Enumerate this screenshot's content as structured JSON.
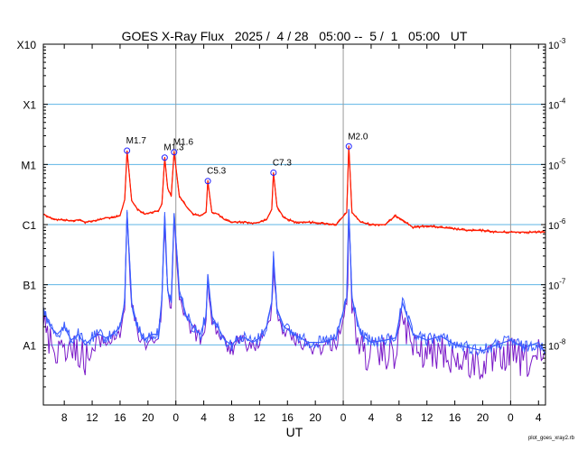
{
  "colors": {
    "grid": "#5fb4e6",
    "day_line": "#9a9a9a",
    "long_channel": "#ff1a00",
    "long_channel_alt": "#f5a000",
    "short_channel": "#3a5cff",
    "short_channel_alt": "#7a18c8",
    "flare_marker": "#2222ff"
  },
  "chart_data": {
    "type": "line",
    "title": "GOES X-Ray Flux   2025 /  4 / 28   05:00 --  5 /  1   05:00   UT",
    "xlabel": "UT",
    "ylabel": "",
    "yscale": "log",
    "ylim": [
      1e-09,
      0.001
    ],
    "xlim": [
      "2025-04-28 05:00",
      "2025-05-01 05:00"
    ],
    "x_ticks": [
      {
        "t": "2025-04-28 08:00",
        "label": "8"
      },
      {
        "t": "2025-04-28 12:00",
        "label": "12"
      },
      {
        "t": "2025-04-28 16:00",
        "label": "16"
      },
      {
        "t": "2025-04-28 20:00",
        "label": "20"
      },
      {
        "t": "2025-04-29 00:00",
        "label": "0"
      },
      {
        "t": "2025-04-29 04:00",
        "label": "4"
      },
      {
        "t": "2025-04-29 08:00",
        "label": "8"
      },
      {
        "t": "2025-04-29 12:00",
        "label": "12"
      },
      {
        "t": "2025-04-29 16:00",
        "label": "16"
      },
      {
        "t": "2025-04-29 20:00",
        "label": "20"
      },
      {
        "t": "2025-04-30 00:00",
        "label": "0"
      },
      {
        "t": "2025-04-30 04:00",
        "label": "4"
      },
      {
        "t": "2025-04-30 08:00",
        "label": "8"
      },
      {
        "t": "2025-04-30 12:00",
        "label": "12"
      },
      {
        "t": "2025-04-30 16:00",
        "label": "16"
      },
      {
        "t": "2025-04-30 20:00",
        "label": "20"
      },
      {
        "t": "2025-05-01 00:00",
        "label": "0"
      },
      {
        "t": "2025-05-01 04:00",
        "label": "4"
      }
    ],
    "day_lines": [
      "2025-04-29 00:00",
      "2025-04-30 00:00",
      "2025-05-01 00:00"
    ],
    "left_ticks": [
      {
        "value": 0.001,
        "label": "X10"
      },
      {
        "value": 0.0001,
        "label": "X1"
      },
      {
        "value": 1e-05,
        "label": "M1"
      },
      {
        "value": 1e-06,
        "label": "C1"
      },
      {
        "value": 1e-07,
        "label": "B1"
      },
      {
        "value": 1e-08,
        "label": "A1"
      }
    ],
    "right_ticks": [
      {
        "value": 0.001,
        "mantissa": "10",
        "exp": "-3"
      },
      {
        "value": 0.0001,
        "mantissa": "10",
        "exp": "-4"
      },
      {
        "value": 1e-05,
        "mantissa": "10",
        "exp": "-5"
      },
      {
        "value": 1e-06,
        "mantissa": "10",
        "exp": "-6"
      },
      {
        "value": 1e-07,
        "mantissa": "10",
        "exp": "-7"
      },
      {
        "value": 1e-08,
        "mantissa": "10",
        "exp": "-8"
      }
    ],
    "grid_lines": [
      0.0001,
      1e-05,
      1e-06,
      1e-07,
      1e-08
    ],
    "flares": [
      {
        "t": "2025-04-28 17:00",
        "value": 1.7e-05,
        "label": "M1.7"
      },
      {
        "t": "2025-04-28 22:24",
        "value": 1.3e-05,
        "label": "M1.3"
      },
      {
        "t": "2025-04-28 23:45",
        "value": 1.6e-05,
        "label": "M1.6"
      },
      {
        "t": "2025-04-29 04:35",
        "value": 5.3e-06,
        "label": "C5.3"
      },
      {
        "t": "2025-04-29 14:00",
        "value": 7.3e-06,
        "label": "C7.3"
      },
      {
        "t": "2025-04-30 00:48",
        "value": 2e-05,
        "label": "M2.0"
      }
    ],
    "series": [
      {
        "name": "",
        "channel": "long",
        "x": [
          "2025-04-28 05:00",
          "2025-04-28 06:00",
          "2025-04-28 07:00",
          "2025-04-28 08:00",
          "2025-04-28 09:00",
          "2025-04-28 10:00",
          "2025-04-28 11:00",
          "2025-04-28 12:00",
          "2025-04-28 13:00",
          "2025-04-28 14:00",
          "2025-04-28 15:00",
          "2025-04-28 16:00",
          "2025-04-28 16:40",
          "2025-04-28 17:00",
          "2025-04-28 17:40",
          "2025-04-28 18:30",
          "2025-04-28 19:30",
          "2025-04-28 20:30",
          "2025-04-28 21:30",
          "2025-04-28 22:00",
          "2025-04-28 22:24",
          "2025-04-28 22:50",
          "2025-04-28 23:20",
          "2025-04-28 23:45",
          "2025-04-29 00:30",
          "2025-04-29 01:30",
          "2025-04-29 02:30",
          "2025-04-29 03:30",
          "2025-04-29 04:20",
          "2025-04-29 04:35",
          "2025-04-29 05:10",
          "2025-04-29 06:00",
          "2025-04-29 07:00",
          "2025-04-29 08:00",
          "2025-04-29 09:00",
          "2025-04-29 10:00",
          "2025-04-29 11:00",
          "2025-04-29 12:00",
          "2025-04-29 13:00",
          "2025-04-29 13:45",
          "2025-04-29 14:00",
          "2025-04-29 14:30",
          "2025-04-29 15:30",
          "2025-04-29 17:00",
          "2025-04-29 19:00",
          "2025-04-29 21:00",
          "2025-04-29 23:00",
          "2025-04-30 00:30",
          "2025-04-30 00:48",
          "2025-04-30 01:15",
          "2025-04-30 02:30",
          "2025-04-30 04:00",
          "2025-04-30 06:00",
          "2025-04-30 07:30",
          "2025-04-30 08:30",
          "2025-04-30 10:00",
          "2025-04-30 12:00",
          "2025-04-30 14:00",
          "2025-04-30 16:00",
          "2025-04-30 18:00",
          "2025-04-30 20:00",
          "2025-04-30 22:00",
          "2025-05-01 00:00",
          "2025-05-01 02:00",
          "2025-05-01 04:00",
          "2025-05-01 05:00"
        ],
        "values": [
          1.5e-06,
          1.3e-06,
          1.2e-06,
          1.2e-06,
          1.15e-06,
          1.2e-06,
          1.1e-06,
          1.15e-06,
          1.2e-06,
          1.3e-06,
          1.3e-06,
          1.4e-06,
          2.6e-06,
          1.7e-05,
          2.5e-06,
          1.8e-06,
          1.5e-06,
          1.6e-06,
          1.7e-06,
          2.2e-06,
          1.3e-05,
          4e-06,
          3e-06,
          1.6e-05,
          3e-06,
          2e-06,
          1.5e-06,
          1.4e-06,
          1.6e-06,
          5.3e-06,
          1.6e-06,
          1.5e-06,
          1.2e-06,
          1.1e-06,
          1.1e-06,
          1.1e-06,
          1.05e-06,
          1.1e-06,
          1.2e-06,
          1.8e-06,
          7.3e-06,
          2e-06,
          1.3e-06,
          1.1e-06,
          1.1e-06,
          1.05e-06,
          1e-06,
          1.6e-06,
          2e-05,
          1.6e-06,
          1.1e-06,
          1e-06,
          1e-06,
          1.4e-06,
          1.2e-06,
          9e-07,
          9.5e-07,
          9e-07,
          8.5e-07,
          8e-07,
          8e-07,
          7.5e-07,
          7.5e-07,
          7.5e-07,
          7.5e-07,
          7.5e-07
        ]
      },
      {
        "name": "",
        "channel": "short",
        "x": [
          "2025-04-28 05:00",
          "2025-04-28 06:00",
          "2025-04-28 07:00",
          "2025-04-28 08:00",
          "2025-04-28 09:00",
          "2025-04-28 10:00",
          "2025-04-28 11:00",
          "2025-04-28 12:00",
          "2025-04-28 13:00",
          "2025-04-28 14:00",
          "2025-04-28 15:00",
          "2025-04-28 16:00",
          "2025-04-28 16:40",
          "2025-04-28 17:00",
          "2025-04-28 17:40",
          "2025-04-28 18:30",
          "2025-04-28 19:30",
          "2025-04-28 20:30",
          "2025-04-28 21:30",
          "2025-04-28 22:00",
          "2025-04-28 22:24",
          "2025-04-28 22:50",
          "2025-04-28 23:20",
          "2025-04-28 23:45",
          "2025-04-29 00:30",
          "2025-04-29 01:30",
          "2025-04-29 02:30",
          "2025-04-29 03:30",
          "2025-04-29 04:20",
          "2025-04-29 04:35",
          "2025-04-29 05:10",
          "2025-04-29 06:00",
          "2025-04-29 07:00",
          "2025-04-29 08:00",
          "2025-04-29 09:00",
          "2025-04-29 10:00",
          "2025-04-29 11:00",
          "2025-04-29 12:00",
          "2025-04-29 13:00",
          "2025-04-29 13:45",
          "2025-04-29 14:00",
          "2025-04-29 14:30",
          "2025-04-29 15:30",
          "2025-04-29 17:00",
          "2025-04-29 19:00",
          "2025-04-29 21:00",
          "2025-04-29 23:00",
          "2025-04-30 00:30",
          "2025-04-30 00:48",
          "2025-04-30 01:15",
          "2025-04-30 02:30",
          "2025-04-30 04:00",
          "2025-04-30 06:00",
          "2025-04-30 07:30",
          "2025-04-30 08:30",
          "2025-04-30 10:00",
          "2025-04-30 12:00",
          "2025-04-30 14:00",
          "2025-04-30 16:00",
          "2025-04-30 18:00",
          "2025-04-30 20:00",
          "2025-04-30 22:00",
          "2025-05-01 00:00",
          "2025-05-01 02:00",
          "2025-05-01 04:00",
          "2025-05-01 05:00"
        ],
        "values": [
          4e-08,
          2e-08,
          1.5e-08,
          2e-08,
          1.2e-08,
          1.5e-08,
          1e-08,
          1.3e-08,
          1.5e-08,
          1.3e-08,
          1.5e-08,
          2e-08,
          5e-08,
          1.6e-06,
          5e-08,
          2e-08,
          1.2e-08,
          1.5e-08,
          1.5e-08,
          6e-08,
          1.4e-06,
          8e-08,
          5e-08,
          1.5e-06,
          8e-08,
          3e-08,
          2e-08,
          1.5e-08,
          3e-08,
          1.5e-07,
          3e-08,
          2e-08,
          1.2e-08,
          1e-08,
          1.3e-08,
          1.3e-08,
          1.1e-08,
          1.3e-08,
          2e-08,
          5e-08,
          3e-07,
          4e-08,
          2e-08,
          1.5e-08,
          1.1e-08,
          1.1e-08,
          1.3e-08,
          6e-08,
          1.8e-06,
          6e-08,
          1.5e-08,
          1.1e-08,
          1.2e-08,
          1.3e-08,
          5e-08,
          1.5e-08,
          1.2e-08,
          1.4e-08,
          1e-08,
          9e-09,
          8e-09,
          1e-08,
          1.2e-08,
          9e-09,
          1.1e-08,
          7e-09
        ]
      }
    ]
  },
  "footer": {
    "credit": "plot_goes_xray2.rb"
  }
}
